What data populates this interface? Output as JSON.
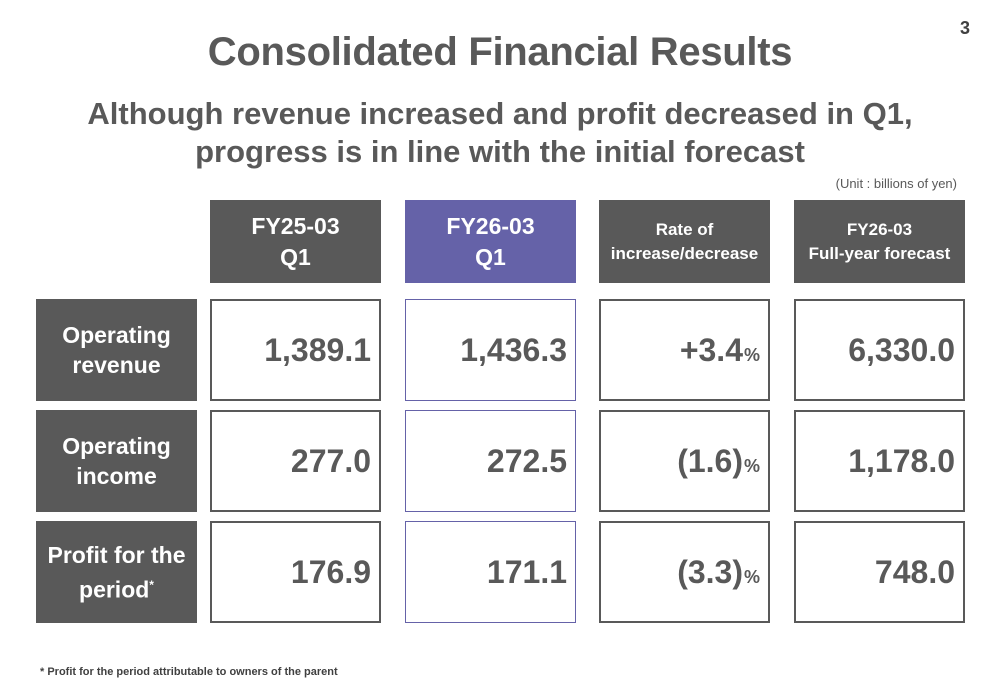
{
  "page_number": "3",
  "title": "Consolidated Financial Results",
  "subtitle": [
    "Although revenue increased and profit decreased in Q1,",
    "progress is in line with the initial forecast"
  ],
  "unit": "(Unit : billions of yen)",
  "columns": [
    {
      "line1": "FY25-03",
      "line2": "Q1"
    },
    {
      "line1": "FY26-03",
      "line2": "Q1"
    },
    {
      "line1": "Rate of",
      "line2": "increase/decrease"
    },
    {
      "line1": "FY26-03",
      "line2": "Full-year forecast"
    }
  ],
  "rows": [
    {
      "line1": "Operating",
      "line2": "revenue",
      "footnote_mark": "",
      "values": [
        "1,389.1",
        "1,436.3",
        "+3.4",
        "6,330.0"
      ]
    },
    {
      "line1": "Operating",
      "line2": "income",
      "footnote_mark": "",
      "values": [
        "277.0",
        "272.5",
        "(1.6)",
        "1,178.0"
      ]
    },
    {
      "line1": "Profit for the",
      "line2": "period",
      "footnote_mark": "*",
      "values": [
        "176.9",
        "171.1",
        "(3.3)",
        "748.0"
      ]
    }
  ],
  "percent_symbol": "%",
  "footnote": "* Profit for the period attributable to owners of the parent",
  "colors": {
    "header_gray": "#595959",
    "accent_purple": "#6562a8",
    "text_gray": "#595959"
  }
}
